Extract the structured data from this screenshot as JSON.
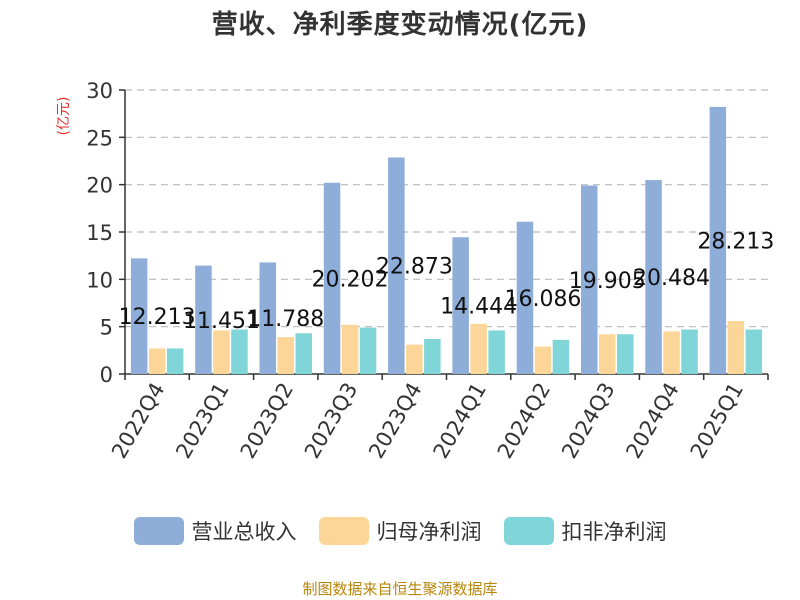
{
  "chart_data": {
    "type": "bar",
    "title": "营收、净利季度变动情况(亿元)",
    "ylabel": "(亿元)",
    "categories": [
      "2022Q4",
      "2023Q1",
      "2023Q2",
      "2023Q3",
      "2023Q4",
      "2024Q1",
      "2024Q2",
      "2024Q3",
      "2024Q4",
      "2025Q1"
    ],
    "series": [
      {
        "name": "营业总收入",
        "color": "#8eadd9",
        "values": [
          12.213,
          11.451,
          11.788,
          20.202,
          22.873,
          14.444,
          16.086,
          19.905,
          20.484,
          28.213
        ],
        "show_labels": true
      },
      {
        "name": "归母净利润",
        "color": "#fcd699",
        "values": [
          2.7,
          4.6,
          3.9,
          5.2,
          3.1,
          5.3,
          2.9,
          4.2,
          4.5,
          5.6
        ],
        "show_labels": false
      },
      {
        "name": "扣非净利润",
        "color": "#7fd5d7",
        "values": [
          2.7,
          4.7,
          4.3,
          4.9,
          3.7,
          4.6,
          3.6,
          4.2,
          4.7,
          4.7
        ],
        "show_labels": false
      }
    ],
    "ylim": [
      0,
      30
    ],
    "yticks": [
      0,
      5,
      10,
      15,
      20,
      25,
      30
    ],
    "grid": true,
    "legend_position": "bottom"
  },
  "footer": {
    "source": "制图数据来自恒生聚源数据库"
  }
}
